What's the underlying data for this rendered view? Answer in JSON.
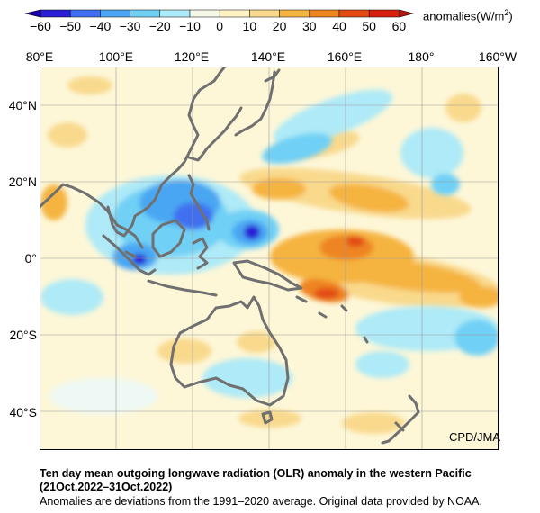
{
  "colorbar": {
    "ticks": [
      "−60",
      "−50",
      "−40",
      "−30",
      "−20",
      "−10",
      "0",
      "10",
      "20",
      "30",
      "40",
      "50",
      "60"
    ],
    "units_base": "anomalies(W/m",
    "units_sup": "2",
    "units_close": ")",
    "colors": [
      "#2a1fd6",
      "#3f6ff0",
      "#4aa6f2",
      "#6fd0f5",
      "#aeeaf7",
      "#f4f8e6",
      "#fff3c6",
      "#f9d98c",
      "#f5b441",
      "#ee8420",
      "#e24a12",
      "#d6200c"
    ]
  },
  "map": {
    "lon_labels": [
      "80°E",
      "100°E",
      "120°E",
      "140°E",
      "160°E",
      "180°",
      "160°W"
    ],
    "lat_labels": [
      "40°N",
      "20°N",
      "0°",
      "20°S",
      "40°S"
    ]
  },
  "credit": "CPD/JMA",
  "caption": {
    "title_line1": "Ten day mean outgoing longwave radiation (OLR) anomaly in the western Pacific",
    "title_line2": "(21Oct.2022–31Oct.2022)",
    "note": "Anomalies are deviations from the 1991–2020 average. Original data provided by NOAA."
  }
}
